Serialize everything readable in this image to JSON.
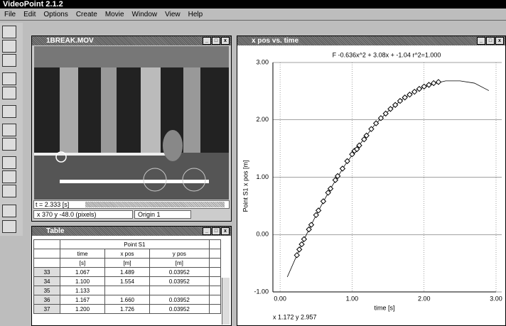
{
  "app": {
    "title": "VideoPoint 2.1.2",
    "menu": [
      "File",
      "Edit",
      "Options",
      "Create",
      "Movie",
      "Window",
      "View",
      "Help"
    ]
  },
  "movie_window": {
    "title": "1BREAK.MOV",
    "time": "t = 2.333 [s]",
    "coords": "x 370  y -48.0 (pixels)",
    "origin": "Origin 1"
  },
  "table_window": {
    "title": "Table",
    "group": "Point S1",
    "headers": [
      [
        "time",
        "[s]"
      ],
      [
        "x pos",
        "[m]"
      ],
      [
        "y pos",
        "[m]"
      ]
    ],
    "rows": [
      [
        "33",
        "1.067",
        "1.489",
        "0.03952"
      ],
      [
        "34",
        "1.100",
        "1.554",
        "0.03952"
      ],
      [
        "35",
        "1.133"
      ],
      [
        "36",
        "1.167",
        "1.660",
        "0.03952"
      ],
      [
        "37",
        "1.200",
        "1.726",
        "0.03952"
      ]
    ]
  },
  "graph_window": {
    "title": "x pos vs. time",
    "readout": "x 1.172     y 2.957"
  },
  "chart_data": {
    "type": "scatter",
    "title": "F -0.636x^2 + 3.08x + -1.04  r^2=1.000",
    "xlabel": "time [s]",
    "ylabel": "Point S1 x pos [m]",
    "color": "#000000",
    "x": [
      0.233,
      0.267,
      0.3,
      0.333,
      0.4,
      0.433,
      0.5,
      0.533,
      0.6,
      0.667,
      0.7,
      0.767,
      0.8,
      0.867,
      0.933,
      1.0,
      1.033,
      1.067,
      1.1,
      1.167,
      1.2,
      1.267,
      1.333,
      1.4,
      1.467,
      1.533,
      1.6,
      1.667,
      1.733,
      1.8,
      1.867,
      1.933,
      2.0,
      2.067,
      2.133,
      2.2
    ],
    "values": [
      -0.36,
      -0.26,
      -0.17,
      -0.08,
      0.09,
      0.17,
      0.34,
      0.42,
      0.58,
      0.73,
      0.8,
      0.95,
      1.02,
      1.15,
      1.28,
      1.4,
      1.46,
      1.489,
      1.554,
      1.66,
      1.726,
      1.84,
      1.94,
      2.03,
      2.11,
      2.19,
      2.26,
      2.33,
      2.39,
      2.44,
      2.49,
      2.54,
      2.58,
      2.61,
      2.64,
      2.66
    ],
    "fit_curve": {
      "x": [
        0.1,
        0.3,
        0.5,
        0.7,
        0.9,
        1.1,
        1.3,
        1.5,
        1.7,
        1.9,
        2.1,
        2.3,
        2.5,
        2.7,
        2.9
      ],
      "values": [
        -0.74,
        -0.17,
        0.34,
        0.8,
        1.21,
        1.56,
        1.89,
        2.15,
        2.36,
        2.52,
        2.62,
        2.68,
        2.68,
        2.64,
        2.51
      ]
    },
    "xlim": [
      -0.1,
      3.0
    ],
    "ylim": [
      -1.0,
      3.0
    ],
    "xticks": [
      {
        "value": 0,
        "label": "0.00"
      },
      {
        "value": 1,
        "label": "1.00"
      },
      {
        "value": 2,
        "label": "2.00"
      },
      {
        "value": 3,
        "label": "3.00"
      }
    ],
    "yticks": [
      {
        "value": -1,
        "label": "-1.00"
      },
      {
        "value": 0,
        "label": "0.00"
      },
      {
        "value": 1,
        "label": "1.00"
      },
      {
        "value": 2,
        "label": "2.00"
      },
      {
        "value": 3,
        "label": "3.00"
      }
    ],
    "grid": true
  }
}
